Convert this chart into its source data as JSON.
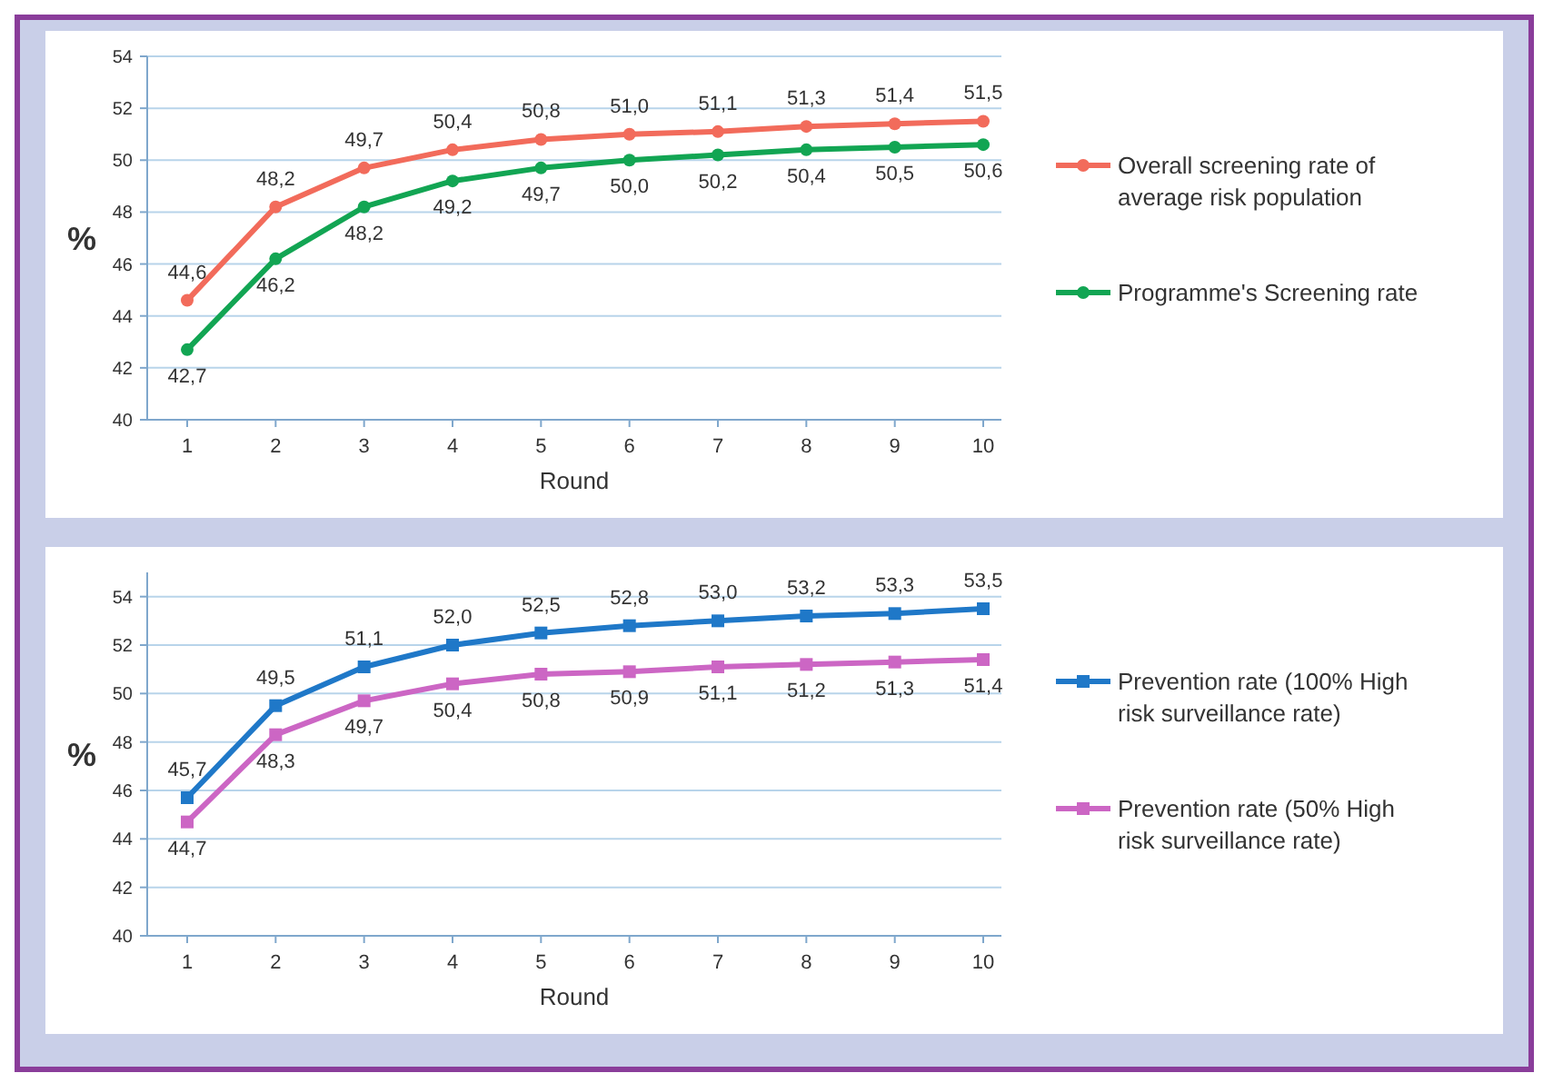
{
  "chart_data": [
    {
      "type": "line",
      "xlabel": "Round",
      "ylabel": "%",
      "categories": [
        "1",
        "2",
        "3",
        "4",
        "5",
        "6",
        "7",
        "8",
        "9",
        "10"
      ],
      "ylim": [
        40,
        54
      ],
      "yticks": [
        40,
        42,
        44,
        46,
        48,
        50,
        52,
        54
      ],
      "grid": "y",
      "legend": "right",
      "marker": "circle",
      "series": [
        {
          "name": "Overall screening rate of average risk population",
          "color": "#f26b5b",
          "values": [
            44.6,
            48.2,
            49.7,
            50.4,
            50.8,
            51.0,
            51.1,
            51.3,
            51.4,
            51.5
          ],
          "value_labels": [
            "44,6",
            "48,2",
            "49,7",
            "50,4",
            "50,8",
            "51,0",
            "51,1",
            "51,3",
            "51,4",
            "51,5"
          ]
        },
        {
          "name": "Programme's Screening rate",
          "color": "#12a553",
          "values": [
            42.7,
            46.2,
            48.2,
            49.2,
            49.7,
            50.0,
            50.2,
            50.4,
            50.5,
            50.6
          ],
          "value_labels": [
            "42,7",
            "46,2",
            "48,2",
            "49,2",
            "49,7",
            "50,0",
            "50,2",
            "50,4",
            "50,5",
            "50,6"
          ]
        }
      ]
    },
    {
      "type": "line",
      "xlabel": "Round",
      "ylabel": "%",
      "categories": [
        "1",
        "2",
        "3",
        "4",
        "5",
        "6",
        "7",
        "8",
        "9",
        "10"
      ],
      "ylim": [
        40,
        55
      ],
      "yticks": [
        40,
        42,
        44,
        46,
        48,
        50,
        52,
        54
      ],
      "grid": "y",
      "legend": "right",
      "marker": "square",
      "series": [
        {
          "name": "Prevention rate (100% High risk surveillance rate)",
          "color": "#1f78c8",
          "values": [
            45.7,
            49.5,
            51.1,
            52.0,
            52.5,
            52.8,
            53.0,
            53.2,
            53.3,
            53.5
          ],
          "value_labels": [
            "45,7",
            "49,5",
            "51,1",
            "52,0",
            "52,5",
            "52,8",
            "53,0",
            "53,2",
            "53,3",
            "53,5"
          ]
        },
        {
          "name": "Prevention rate (50% High risk surveillance rate)",
          "color": "#cc66c4",
          "values": [
            44.7,
            48.3,
            49.7,
            50.4,
            50.8,
            50.9,
            51.1,
            51.2,
            51.3,
            51.4
          ],
          "value_labels": [
            "44,7",
            "48,3",
            "49,7",
            "50,4",
            "50,8",
            "50,9",
            "51,1",
            "51,2",
            "51,3",
            "51,4"
          ]
        }
      ]
    }
  ]
}
